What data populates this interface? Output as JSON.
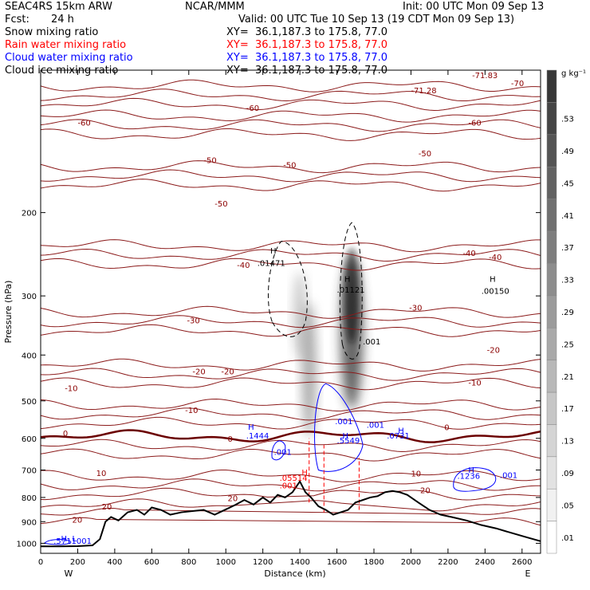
{
  "header": {
    "model": "SEAC4RS 15km ARW",
    "center": "NCAR/MMM",
    "init": "Init: 00 UTC Mon 09 Sep 13",
    "fcst_label": "Fcst:",
    "fcst_value": "24 h",
    "valid": "Valid: 00 UTC Tue 10 Sep 13 (19 CDT Mon 09 Sep 13)"
  },
  "fields": [
    {
      "name": "Snow mixing ratio",
      "color": "#000000",
      "xy": "XY=  36.1,187.3 to 175.8, 77.0"
    },
    {
      "name": "Rain water mixing ratio",
      "color": "#ff0000",
      "xy": "XY=  36.1,187.3 to 175.8, 77.0"
    },
    {
      "name": "Cloud water mixing ratio",
      "color": "#0000ff",
      "xy": "XY=  36.1,187.3 to 175.8, 77.0"
    },
    {
      "name": "Cloud ice mixing ratio",
      "color": "#000000",
      "xy": "XY=  36.1,187.3 to 175.8, 77.0"
    }
  ],
  "chart_data": {
    "type": "heatmap",
    "xlabel": "Distance (km)",
    "ylabel": "Pressure (hPa)",
    "xlim": [
      0,
      2700
    ],
    "ylim": [
      1050,
      100
    ],
    "y_log_scale": true,
    "x_ticks": [
      0,
      200,
      400,
      600,
      800,
      1000,
      1200,
      1400,
      1600,
      1800,
      2000,
      2200,
      2400,
      2600
    ],
    "y_ticks": [
      200,
      300,
      400,
      500,
      600,
      700,
      800,
      900,
      1000
    ],
    "x_end_labels": {
      "left": "W",
      "right": "E"
    },
    "colorbar": {
      "unit": "g kg⁻¹",
      "ticks": [
        ".01",
        ".05",
        ".09",
        ".13",
        ".17",
        ".21",
        ".25",
        ".29",
        ".33",
        ".37",
        ".41",
        ".45",
        ".49",
        ".53"
      ]
    },
    "terrain_pressure_hPa": {
      "x": [
        0,
        100,
        200,
        280,
        320,
        350,
        380,
        420,
        470,
        520,
        560,
        600,
        650,
        700,
        760,
        820,
        880,
        940,
        1000,
        1050,
        1100,
        1150,
        1200,
        1240,
        1280,
        1320,
        1360,
        1400,
        1430,
        1460,
        1500,
        1540,
        1580,
        1620,
        1660,
        1700,
        1740,
        1780,
        1820,
        1860,
        1900,
        1940,
        1980,
        2040,
        2100,
        2160,
        2220,
        2300,
        2380,
        2460,
        2540,
        2620,
        2700
      ],
      "p": [
        1015,
        1015,
        1014,
        1010,
        980,
        900,
        880,
        895,
        860,
        850,
        870,
        840,
        850,
        870,
        860,
        855,
        850,
        870,
        848,
        830,
        810,
        828,
        800,
        820,
        790,
        800,
        780,
        740,
        780,
        800,
        835,
        850,
        870,
        860,
        850,
        820,
        810,
        800,
        795,
        780,
        775,
        780,
        790,
        820,
        850,
        870,
        880,
        895,
        915,
        930,
        950,
        970,
        990
      ]
    },
    "temperature_contours_C": [
      -70,
      -60,
      -50,
      -40,
      -30,
      -20,
      -10,
      0,
      10,
      20
    ],
    "contour_labels": [
      {
        "text": "-71.28",
        "x": 2000,
        "p": 112,
        "color": "#8b0000"
      },
      {
        "text": "-71.83",
        "x": 2330,
        "p": 104,
        "color": "#8b0000"
      },
      {
        "text": "-70",
        "x": 2540,
        "p": 108,
        "color": "#8b0000"
      },
      {
        "text": "-60",
        "x": 200,
        "p": 131,
        "color": "#8b0000"
      },
      {
        "text": "-60",
        "x": 1110,
        "p": 122,
        "color": "#8b0000"
      },
      {
        "text": "-60",
        "x": 2310,
        "p": 131,
        "color": "#8b0000"
      },
      {
        "text": "-50",
        "x": 880,
        "p": 157,
        "color": "#8b0000"
      },
      {
        "text": "-50",
        "x": 940,
        "p": 194,
        "color": "#8b0000"
      },
      {
        "text": "-50",
        "x": 2040,
        "p": 152,
        "color": "#8b0000"
      },
      {
        "text": "-50",
        "x": 1310,
        "p": 161,
        "color": "#8b0000"
      },
      {
        "text": "-40",
        "x": 1060,
        "p": 262,
        "color": "#8b0000"
      },
      {
        "text": "-40",
        "x": 2280,
        "p": 247,
        "color": "#8b0000"
      },
      {
        "text": "-40",
        "x": 2420,
        "p": 252,
        "color": "#8b0000"
      },
      {
        "text": "-30",
        "x": 790,
        "p": 343,
        "color": "#8b0000"
      },
      {
        "text": "-30",
        "x": 1990,
        "p": 322,
        "color": "#8b0000"
      },
      {
        "text": "-20",
        "x": 820,
        "p": 439,
        "color": "#8b0000"
      },
      {
        "text": "-20",
        "x": 975,
        "p": 439,
        "color": "#8b0000"
      },
      {
        "text": "-20",
        "x": 2410,
        "p": 396,
        "color": "#8b0000"
      },
      {
        "text": "-10",
        "x": 130,
        "p": 477,
        "color": "#8b0000"
      },
      {
        "text": "-10",
        "x": 780,
        "p": 530,
        "color": "#8b0000"
      },
      {
        "text": "-10",
        "x": 2310,
        "p": 464,
        "color": "#8b0000"
      },
      {
        "text": "0",
        "x": 120,
        "p": 594,
        "color": "#8b0000"
      },
      {
        "text": "0",
        "x": 1010,
        "p": 610,
        "color": "#8b0000"
      },
      {
        "text": "0",
        "x": 2180,
        "p": 577,
        "color": "#8b0000"
      },
      {
        "text": "10",
        "x": 300,
        "p": 721,
        "color": "#8b0000"
      },
      {
        "text": "10",
        "x": 2000,
        "p": 722,
        "color": "#8b0000"
      },
      {
        "text": "20",
        "x": 330,
        "p": 848,
        "color": "#8b0000"
      },
      {
        "text": "20",
        "x": 1010,
        "p": 814,
        "color": "#8b0000"
      },
      {
        "text": "20",
        "x": 2050,
        "p": 783,
        "color": "#8b0000"
      },
      {
        "text": "20",
        "x": 170,
        "p": 905,
        "color": "#8b0000"
      },
      {
        "text": "H",
        "x": 1240,
        "p": 244,
        "color": "#000000"
      },
      {
        "text": ".01471",
        "x": 1170,
        "p": 259,
        "color": "#000000"
      },
      {
        "text": "H",
        "x": 1640,
        "p": 280,
        "color": "#000000"
      },
      {
        "text": ".01121",
        "x": 1600,
        "p": 295,
        "color": "#000000"
      },
      {
        "text": "H",
        "x": 2425,
        "p": 280,
        "color": "#000000"
      },
      {
        "text": ".00150",
        "x": 2380,
        "p": 297,
        "color": "#000000"
      },
      {
        "text": ".001",
        "x": 1740,
        "p": 380,
        "color": "#000000"
      },
      {
        "text": "H",
        "x": 1120,
        "p": 575,
        "color": "#0000ff"
      },
      {
        "text": ".1444",
        "x": 1110,
        "p": 600,
        "color": "#0000ff"
      },
      {
        "text": ".001",
        "x": 1260,
        "p": 650,
        "color": "#0000ff"
      },
      {
        "text": ".001",
        "x": 1590,
        "p": 560,
        "color": "#0000ff"
      },
      {
        "text": "H",
        "x": 1630,
        "p": 600,
        "color": "#0000ff"
      },
      {
        "text": ".5549",
        "x": 1600,
        "p": 615,
        "color": "#0000ff"
      },
      {
        "text": ".001",
        "x": 1760,
        "p": 570,
        "color": "#0000ff"
      },
      {
        "text": "H",
        "x": 1930,
        "p": 585,
        "color": "#0000ff"
      },
      {
        "text": ".0731",
        "x": 1870,
        "p": 601,
        "color": "#0000ff"
      },
      {
        "text": "H",
        "x": 2310,
        "p": 710,
        "color": "#0000ff"
      },
      {
        "text": ".1236",
        "x": 2250,
        "p": 730,
        "color": "#0000ff"
      },
      {
        "text": ".001",
        "x": 2480,
        "p": 728,
        "color": "#0000ff"
      },
      {
        "text": "H",
        "x": 1410,
        "p": 718,
        "color": "#ff0000"
      },
      {
        "text": ".05514",
        "x": 1290,
        "p": 737,
        "color": "#ff0000"
      },
      {
        "text": ".001",
        "x": 1290,
        "p": 766,
        "color": "#ff0000"
      },
      {
        "text": "H",
        "x": 110,
        "p": 990,
        "color": "#0000ff"
      },
      {
        "text": "L",
        "x": 170,
        "p": 990,
        "color": "#0000ff"
      },
      {
        "text": ".5711001",
        "x": 70,
        "p": 1003,
        "color": "#0000ff"
      }
    ]
  }
}
